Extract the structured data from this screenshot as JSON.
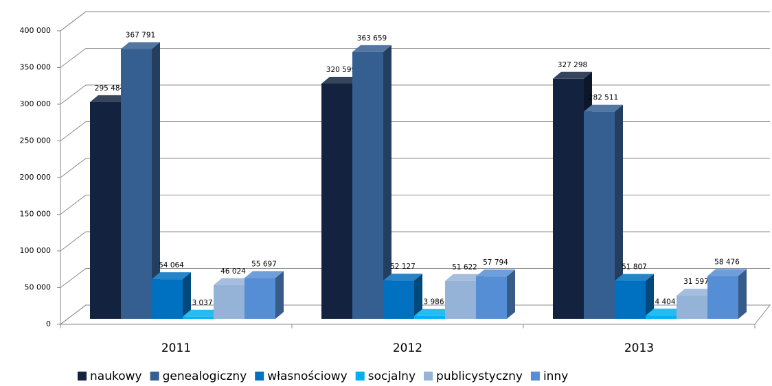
{
  "chart_data": {
    "type": "bar3d",
    "categories": [
      "2011",
      "2012",
      "2013"
    ],
    "series": [
      {
        "name": "naukowy",
        "color": "#13233f",
        "values": [
          295484,
          320599,
          327298
        ],
        "value_labels": [
          "295 484",
          "320 599",
          "327 298"
        ]
      },
      {
        "name": "genealogiczny",
        "color": "#365f91",
        "values": [
          367791,
          363659,
          282511
        ],
        "value_labels": [
          "367 791",
          "363 659",
          "282 511"
        ]
      },
      {
        "name": "własnościowy",
        "color": "#0070c0",
        "values": [
          54064,
          52127,
          51807
        ],
        "value_labels": [
          "54 064",
          "52 127",
          "51 807"
        ]
      },
      {
        "name": "socjalny",
        "color": "#00b0f0",
        "values": [
          3037,
          3986,
          4404
        ],
        "value_labels": [
          "3 037",
          "3 986",
          "4 404"
        ]
      },
      {
        "name": "publicystyczny",
        "color": "#95b3d7",
        "values": [
          46024,
          51622,
          31597
        ],
        "value_labels": [
          "46 024",
          "51 622",
          "31 597"
        ]
      },
      {
        "name": "inny",
        "color": "#558ed5",
        "values": [
          55697,
          57794,
          58476
        ],
        "value_labels": [
          "55 697",
          "57 794",
          "58 476"
        ]
      }
    ],
    "ylim": [
      0,
      400000
    ],
    "yticks": [
      0,
      {
        "value": 50000,
        "label": "50 000"
      },
      {
        "value": 100000,
        "label": "100 000"
      },
      {
        "value": 150000,
        "label": "150 000"
      },
      {
        "value": 200000,
        "label": "200 000"
      },
      {
        "value": 250000,
        "label": "250 000"
      },
      {
        "value": 300000,
        "label": "300 000"
      },
      {
        "value": 350000,
        "label": "350 000"
      },
      {
        "value": 400000,
        "label": "400 000"
      }
    ],
    "grid": true,
    "legend": "bottom"
  }
}
